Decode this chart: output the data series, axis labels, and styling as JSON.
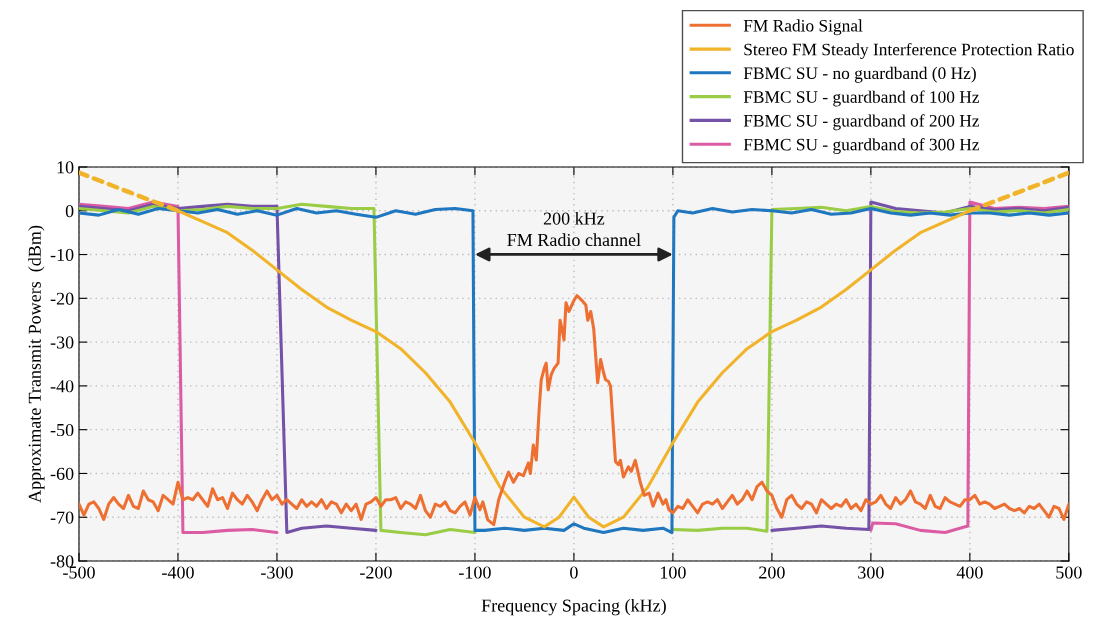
{
  "chart_data": {
    "type": "line",
    "xlabel": "Frequency Spacing (kHz)",
    "ylabel": "Approximate Transmit Powers  (dBm)",
    "xlim": [
      -500,
      500
    ],
    "xticks": [
      -500,
      -400,
      -300,
      -200,
      -100,
      0,
      100,
      200,
      300,
      400,
      500
    ],
    "ylim": [
      -80,
      10
    ],
    "yticks": [
      -80,
      -70,
      -60,
      -50,
      -40,
      -30,
      -20,
      -10,
      0,
      10
    ],
    "grid": true,
    "legend": "top right",
    "line_style": "solid",
    "marker": "none",
    "annotations": [
      "200 kHz\nFM Radio channel"
    ],
    "series": [
      {
        "name": "FM Radio Signal",
        "color": "#ed7032",
        "x": [
          -500,
          -495,
          -490,
          -485,
          -480,
          -475,
          -470,
          -465,
          -460,
          -455,
          -450,
          -445,
          -440,
          -435,
          -430,
          -425,
          -420,
          -415,
          -410,
          -405,
          -400,
          -395,
          -390,
          -385,
          -380,
          -375,
          -370,
          -365,
          -360,
          -355,
          -350,
          -345,
          -340,
          -335,
          -330,
          -325,
          -320,
          -315,
          -310,
          -305,
          -300,
          -295,
          -290,
          -285,
          -280,
          -275,
          -270,
          -265,
          -260,
          -255,
          -250,
          -245,
          -240,
          -235,
          -230,
          -225,
          -220,
          -215,
          -210,
          -205,
          -200,
          -195,
          -190,
          -185,
          -180,
          -175,
          -170,
          -165,
          -160,
          -155,
          -150,
          -145,
          -140,
          -135,
          -130,
          -125,
          -120,
          -115,
          -110,
          -105,
          -100,
          -95,
          -92,
          -87,
          -81,
          -76,
          -70,
          -66,
          -61,
          -56,
          -51,
          -46,
          -44,
          -41,
          -38,
          -35,
          -33,
          -30,
          -28,
          -26,
          -23,
          -20,
          -16,
          -14,
          -12,
          -10,
          -8,
          -5,
          -2,
          0,
          3,
          6,
          9,
          12,
          14,
          17,
          20,
          24,
          27,
          30,
          32,
          35,
          37,
          42,
          45,
          47,
          50,
          55,
          58,
          62,
          65,
          67,
          71,
          76,
          80,
          85,
          90,
          93,
          96,
          100,
          105,
          110,
          115,
          120,
          125,
          130,
          135,
          140,
          145,
          150,
          155,
          160,
          165,
          170,
          175,
          180,
          185,
          190,
          195,
          200,
          205,
          210,
          215,
          220,
          225,
          230,
          235,
          240,
          245,
          250,
          255,
          260,
          265,
          270,
          275,
          280,
          285,
          290,
          295,
          300,
          305,
          310,
          315,
          320,
          325,
          330,
          335,
          340,
          345,
          350,
          355,
          360,
          365,
          370,
          375,
          380,
          385,
          390,
          395,
          400,
          405,
          410,
          415,
          420,
          425,
          430,
          435,
          440,
          445,
          450,
          455,
          460,
          465,
          470,
          475,
          480,
          485,
          490,
          495,
          500
        ],
        "values": [
          -67,
          -69.5,
          -67,
          -66.5,
          -68,
          -70.5,
          -67,
          -65.5,
          -67,
          -68,
          -65,
          -67.5,
          -68,
          -64,
          -66,
          -66.5,
          -68.5,
          -65,
          -66,
          -67,
          -62,
          -66,
          -65.5,
          -66,
          -64.5,
          -66,
          -67.5,
          -63.5,
          -66,
          -65.5,
          -68,
          -64.5,
          -66,
          -67,
          -65,
          -66.5,
          -68.5,
          -66,
          -64,
          -66,
          -65,
          -67,
          -66,
          -67,
          -68,
          -66,
          -67.5,
          -66.5,
          -67.5,
          -66,
          -68,
          -66.5,
          -67,
          -69,
          -67,
          -68.5,
          -67,
          -70.5,
          -67,
          -66.5,
          -65.5,
          -67.5,
          -66,
          -66,
          -65.5,
          -68,
          -66.5,
          -67,
          -68,
          -65,
          -68.5,
          -70,
          -67,
          -67.5,
          -66.5,
          -68.5,
          -69,
          -67.5,
          -66.5,
          -69.5,
          -65.5,
          -68.3,
          -66.5,
          -70.6,
          -71.7,
          -66,
          -62,
          -59.7,
          -62,
          -60,
          -60.5,
          -57.6,
          -60,
          -53.5,
          -56.9,
          -45,
          -38.6,
          -36,
          -34.8,
          -40.9,
          -37.5,
          -36,
          -34.8,
          -25,
          -27,
          -29.5,
          -21,
          -23,
          -21.5,
          -20.5,
          -19.4,
          -20,
          -20.7,
          -21.5,
          -25,
          -23,
          -27,
          -39.3,
          -34,
          -37,
          -38.6,
          -39,
          -40.1,
          -57.3,
          -58,
          -57,
          -60.8,
          -58.5,
          -59.5,
          -57,
          -60,
          -62,
          -65,
          -64.5,
          -67.5,
          -64.5,
          -67,
          -66,
          -68.3,
          -69,
          -67.5,
          -68,
          -66,
          -67.5,
          -69,
          -67,
          -66.5,
          -67,
          -66,
          -68,
          -66.5,
          -65,
          -67,
          -66,
          -64,
          -66,
          -63,
          -62,
          -64,
          -65,
          -68,
          -70,
          -66,
          -65,
          -67,
          -68,
          -66.5,
          -67,
          -69,
          -66,
          -67,
          -68,
          -67,
          -67.5,
          -66,
          -68,
          -67,
          -68.5,
          -66,
          -67,
          -66.5,
          -65,
          -67,
          -68,
          -65.5,
          -67,
          -66,
          -64,
          -66.5,
          -67,
          -68,
          -65,
          -67.5,
          -68,
          -65.5,
          -66.5,
          -67,
          -67.5,
          -66,
          -66,
          -65,
          -67,
          -66.5,
          -67,
          -68,
          -67.5,
          -67,
          -68,
          -68.5,
          -68,
          -69,
          -67.5,
          -68,
          -67,
          -68.5,
          -70,
          -67.5,
          -68,
          -70.5,
          -67
        ]
      },
      {
        "name": "Stereo FM Steady Interference Protection Ratio",
        "color": "#f0b32a",
        "x": [
          -400,
          -375,
          -350,
          -325,
          -300,
          -275,
          -250,
          -225,
          -200,
          -175,
          -150,
          -125,
          -100,
          -75,
          -50,
          -30,
          -15,
          0,
          15,
          30,
          50,
          75,
          100,
          125,
          150,
          175,
          200,
          225,
          250,
          275,
          300,
          325,
          350,
          375,
          400
        ],
        "values": [
          0,
          -2.5,
          -5,
          -9,
          -13.5,
          -18,
          -22,
          -25,
          -27.6,
          -31.5,
          -37,
          -43.7,
          -53,
          -63,
          -70,
          -72.2,
          -70,
          -65.4,
          -70,
          -72.2,
          -70,
          -63,
          -53,
          -43.7,
          -37,
          -31.5,
          -27.6,
          -25,
          -22,
          -18,
          -13.5,
          -9,
          -5,
          -2.5,
          0
        ]
      },
      {
        "color": "#f0b32a",
        "line_style": "dashed",
        "x": [
          -500,
          -450,
          -400
        ],
        "values": [
          8.7,
          4.3,
          0
        ]
      },
      {
        "color": "#f0b32a",
        "line_style": "dashed",
        "x": [
          400,
          450,
          500
        ],
        "values": [
          0,
          4.3,
          8.7
        ]
      },
      {
        "name": "FBMC SU - no guardband (0 Hz)",
        "color": "#1f77c0",
        "x": [
          -500,
          -480,
          -460,
          -440,
          -420,
          -400,
          -380,
          -360,
          -340,
          -320,
          -300,
          -280,
          -260,
          -240,
          -220,
          -200,
          -180,
          -160,
          -140,
          -120,
          -102,
          -100,
          -90,
          -70,
          -50,
          -30,
          -10,
          0,
          10,
          30,
          50,
          70,
          90,
          99,
          101,
          105,
          120,
          140,
          160,
          180,
          200,
          220,
          240,
          260,
          280,
          300,
          320,
          340,
          360,
          380,
          400,
          420,
          440,
          460,
          480,
          500
        ],
        "values": [
          -0.5,
          -1,
          0.3,
          -0.8,
          0.5,
          0,
          -0.5,
          0.3,
          -0.8,
          0,
          -1,
          0.5,
          -0.5,
          0,
          -0.8,
          -1.5,
          0,
          -0.8,
          0.3,
          0.5,
          0,
          -73,
          -73,
          -72.5,
          -73,
          -72.5,
          -73,
          -71.5,
          -72.5,
          -73.5,
          -72.5,
          -73,
          -72.5,
          -73.5,
          -1.5,
          0,
          -0.5,
          0.5,
          -0.3,
          0.3,
          0,
          -0.5,
          0.3,
          -0.8,
          -0.5,
          0.5,
          -0.5,
          -1,
          -0.5,
          -1,
          -0.5,
          -0.5,
          -1,
          -0.5,
          -1,
          -0.5
        ]
      },
      {
        "name": "FBMC SU - guardband of 100 Hz",
        "color": "#9acd45",
        "x": [
          -500,
          -475,
          -450,
          -425,
          -400,
          -375,
          -350,
          -325,
          -300,
          -275,
          -250,
          -225,
          -202,
          -195,
          -175,
          -150,
          -125,
          -100,
          -75,
          -50,
          -25,
          0,
          25,
          50,
          75,
          100,
          125,
          150,
          175,
          195,
          200,
          225,
          250,
          275,
          300,
          325,
          350,
          375,
          400,
          425,
          450,
          475,
          500
        ],
        "values": [
          0.5,
          0,
          -0.5,
          1,
          0,
          0.3,
          1,
          0.5,
          0.5,
          1.5,
          1,
          0.5,
          0.5,
          -73,
          -73.5,
          -74,
          -72.8,
          -73.5,
          null,
          null,
          null,
          null,
          null,
          null,
          null,
          -72.8,
          -73,
          -72.5,
          -72.5,
          -73.2,
          0.3,
          0.5,
          0.8,
          0,
          1,
          -0.2,
          -0.5,
          -0.3,
          0.5,
          -0.3,
          0,
          -0.5,
          0.3
        ]
      },
      {
        "name": "FBMC SU - guardband of 200 Hz",
        "color": "#7352a8",
        "x": [
          -500,
          -475,
          -450,
          -425,
          -400,
          -375,
          -350,
          -325,
          -300,
          -290,
          -275,
          -250,
          -225,
          -200,
          -175,
          -150,
          -125,
          -100,
          -75,
          -50,
          -25,
          0,
          25,
          50,
          75,
          100,
          125,
          150,
          175,
          200,
          225,
          250,
          275,
          298,
          300,
          325,
          350,
          375,
          400,
          425,
          450,
          475,
          500
        ],
        "values": [
          1,
          0.5,
          0,
          1.5,
          0.5,
          1,
          1.5,
          1,
          1,
          -73.5,
          -72.5,
          -72,
          -72.5,
          -73,
          null,
          null,
          null,
          null,
          null,
          null,
          null,
          null,
          null,
          null,
          null,
          null,
          null,
          null,
          null,
          -73,
          -72.5,
          -72,
          -72.5,
          -72.8,
          2,
          0.5,
          0,
          -0.5,
          1,
          0.2,
          0.5,
          0,
          0.8
        ]
      },
      {
        "name": "FBMC SU - guardband of 300 Hz",
        "color": "#dc5ca4",
        "x": [
          -500,
          -475,
          -450,
          -425,
          -400,
          -395,
          -375,
          -350,
          -325,
          -300,
          -275,
          -250,
          -225,
          -200,
          -175,
          -150,
          -125,
          -100,
          -75,
          -50,
          -25,
          0,
          25,
          50,
          75,
          100,
          125,
          150,
          175,
          200,
          225,
          250,
          275,
          300,
          302,
          325,
          350,
          375,
          398,
          400,
          425,
          450,
          475,
          500
        ],
        "values": [
          1.5,
          1,
          0.5,
          2,
          1,
          -73.5,
          -73.5,
          -73,
          -72.8,
          -73.5,
          null,
          null,
          null,
          null,
          null,
          null,
          null,
          null,
          null,
          null,
          null,
          null,
          null,
          null,
          null,
          null,
          null,
          null,
          null,
          null,
          null,
          null,
          null,
          -73,
          -71.3,
          -71.5,
          -73,
          -73.5,
          -72,
          2,
          0.5,
          0.8,
          0.5,
          1
        ]
      }
    ]
  }
}
